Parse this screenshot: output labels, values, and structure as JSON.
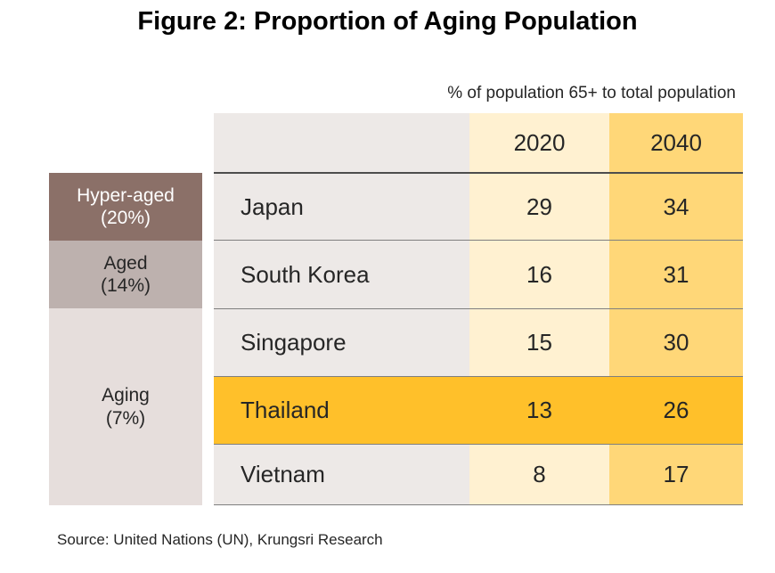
{
  "title": "Figure 2: Proportion of Aging Population",
  "subtitle": "% of population 65+ to total population",
  "source": "Source: United Nations (UN), Krungsri Research",
  "colors": {
    "hyper_aged": "#8b7068",
    "aged": "#bdb1ae",
    "aging": "#e6dedc",
    "country_col": "#ede9e7",
    "col_2020": "#fff1d1",
    "col_2040": "#ffd778",
    "highlight": "#ffc02a"
  },
  "chart_data": {
    "type": "table",
    "columns": [
      "2020",
      "2040"
    ],
    "categories": [
      {
        "label": "Hyper-aged\n(20%)",
        "countries": [
          "Japan"
        ]
      },
      {
        "label": "Aged\n(14%)",
        "countries": [
          "South Korea"
        ]
      },
      {
        "label": "Aging\n(7%)",
        "countries": [
          "Singapore",
          "Thailand",
          "Vietnam"
        ]
      }
    ],
    "rows": [
      {
        "country": "Japan",
        "v2020": "29",
        "v2040": "34"
      },
      {
        "country": "South Korea",
        "v2020": "16",
        "v2040": "31"
      },
      {
        "country": "Singapore",
        "v2020": "15",
        "v2040": "30"
      },
      {
        "country": "Thailand",
        "v2020": "13",
        "v2040": "26",
        "highlighted": true
      },
      {
        "country": "Vietnam",
        "v2020": "8",
        "v2040": "17"
      }
    ]
  }
}
